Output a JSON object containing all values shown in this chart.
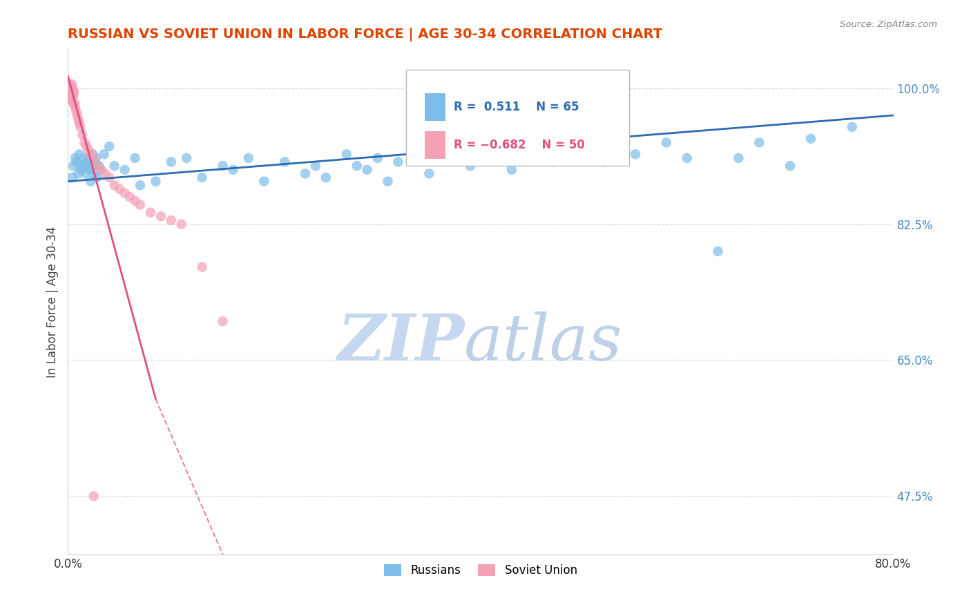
{
  "title": "RUSSIAN VS SOVIET UNION IN LABOR FORCE | AGE 30-34 CORRELATION CHART",
  "source": "Source: ZipAtlas.com",
  "ylabel": "In Labor Force | Age 30-34",
  "xlim": [
    0.0,
    80.0
  ],
  "ylim": [
    40.0,
    105.0
  ],
  "blue_color": "#7BBDE8",
  "pink_color": "#F4A0B5",
  "blue_line_color": "#2B6CB0",
  "pink_line_color": "#E05080",
  "watermark_zip_color": "#C5D8F0",
  "watermark_atlas_color": "#BDD0E8",
  "background_color": "#FFFFFF",
  "grid_color": "#BBBBBB",
  "title_color": "#DD4400",
  "ytick_color": "#4488CC",
  "xtick_color": "#333333",
  "russian_x": [
    0.4,
    0.5,
    0.7,
    0.8,
    1.0,
    1.1,
    1.2,
    1.3,
    1.5,
    1.6,
    1.7,
    1.8,
    2.0,
    2.1,
    2.2,
    2.3,
    2.4,
    2.5,
    2.6,
    2.7,
    2.8,
    3.0,
    3.2,
    3.5,
    4.0,
    4.5,
    5.5,
    6.5,
    7.0,
    8.5,
    10.0,
    11.5,
    13.0,
    15.0,
    16.0,
    17.5,
    19.0,
    21.0,
    23.0,
    24.0,
    25.0,
    27.0,
    28.0,
    29.0,
    30.0,
    31.0,
    32.0,
    35.0,
    37.0,
    39.0,
    41.0,
    43.0,
    45.0,
    47.0,
    50.0,
    52.0,
    55.0,
    58.0,
    60.0,
    63.0,
    65.0,
    67.0,
    70.0,
    72.0,
    76.0
  ],
  "russian_y": [
    88.5,
    90.0,
    91.0,
    90.5,
    89.0,
    91.5,
    90.0,
    89.5,
    91.0,
    90.0,
    89.0,
    90.5,
    91.0,
    89.5,
    88.0,
    90.0,
    91.5,
    89.0,
    90.5,
    91.0,
    88.5,
    90.0,
    89.5,
    91.5,
    92.5,
    90.0,
    89.5,
    91.0,
    87.5,
    88.0,
    90.5,
    91.0,
    88.5,
    90.0,
    89.5,
    91.0,
    88.0,
    90.5,
    89.0,
    90.0,
    88.5,
    91.5,
    90.0,
    89.5,
    91.0,
    88.0,
    90.5,
    89.0,
    91.5,
    90.0,
    91.0,
    89.5,
    91.5,
    90.5,
    92.0,
    90.5,
    91.5,
    93.0,
    91.0,
    79.0,
    91.0,
    93.0,
    90.0,
    93.5,
    95.0
  ],
  "soviet_x": [
    0.05,
    0.08,
    0.1,
    0.12,
    0.14,
    0.16,
    0.18,
    0.2,
    0.22,
    0.25,
    0.28,
    0.3,
    0.33,
    0.36,
    0.4,
    0.44,
    0.48,
    0.52,
    0.56,
    0.6,
    0.65,
    0.7,
    0.8,
    0.9,
    1.0,
    1.1,
    1.2,
    1.4,
    1.6,
    1.8,
    2.0,
    2.2,
    2.5,
    2.8,
    3.2,
    3.6,
    4.0,
    4.5,
    5.0,
    5.5,
    6.0,
    6.5,
    7.0,
    8.0,
    9.0,
    10.0,
    11.0,
    13.0,
    15.0,
    2.5
  ],
  "soviet_y": [
    100.5,
    99.5,
    100.0,
    99.0,
    100.5,
    99.5,
    100.0,
    99.0,
    98.5,
    100.0,
    99.5,
    98.5,
    99.0,
    100.5,
    99.0,
    100.0,
    99.5,
    99.0,
    98.0,
    99.5,
    98.0,
    97.5,
    97.0,
    96.5,
    96.0,
    95.5,
    95.0,
    94.0,
    93.0,
    92.5,
    92.0,
    91.5,
    91.0,
    90.0,
    89.5,
    89.0,
    88.5,
    87.5,
    87.0,
    86.5,
    86.0,
    85.5,
    85.0,
    84.0,
    83.5,
    83.0,
    82.5,
    77.0,
    70.0,
    47.5
  ],
  "blue_trend_x0": 0.0,
  "blue_trend_y0": 88.0,
  "blue_trend_x1": 80.0,
  "blue_trend_y1": 96.5,
  "pink_trend_x0": 0.0,
  "pink_trend_y0": 101.5,
  "pink_trend_x1": 15.0,
  "pink_trend_y1": 40.0,
  "pink_solid_x1": 8.5,
  "pink_solid_y1": 60.0,
  "pink_dash_x1": 15.0,
  "pink_dash_y1": 40.0
}
